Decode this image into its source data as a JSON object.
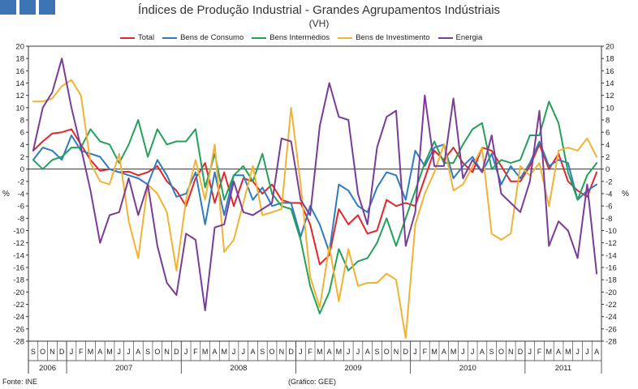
{
  "header": {
    "logo_blocks": [
      "logo-block-1",
      "logo-block-2",
      "logo-block-3"
    ],
    "logo_color": "#3c74b4"
  },
  "footer": {
    "source": "Fonte: INE",
    "credit": "(Gráfico: GEE)"
  },
  "chart_data": {
    "type": "line",
    "title": "Índices de Produção Industrial - Grandes Agrupamentos Indústriais",
    "subtitle": "(VH)",
    "ylabel_left": "%",
    "ylabel_right": "%",
    "ylim": [
      -28,
      20
    ],
    "yticks": [
      20,
      18,
      16,
      14,
      12,
      10,
      8,
      6,
      4,
      2,
      0,
      -2,
      -4,
      -6,
      -8,
      -10,
      -12,
      -14,
      -16,
      -18,
      -20,
      -22,
      -24,
      -26,
      -28
    ],
    "grid": false,
    "legend_position": "top",
    "month_labels": [
      "S",
      "O",
      "N",
      "D",
      "J",
      "F",
      "M",
      "A",
      "M",
      "J",
      "J",
      "A",
      "S",
      "O",
      "N",
      "D",
      "J",
      "F",
      "M",
      "A",
      "M",
      "J",
      "J",
      "A",
      "S",
      "O",
      "N",
      "D",
      "J",
      "F",
      "M",
      "A",
      "M",
      "J",
      "J",
      "A",
      "S",
      "O",
      "N",
      "D",
      "J",
      "F",
      "M",
      "A",
      "M",
      "J",
      "J",
      "A",
      "S",
      "O",
      "N",
      "D",
      "J",
      "F",
      "M",
      "A",
      "M",
      "J",
      "J",
      "A"
    ],
    "years": [
      {
        "label": "2006",
        "start": 0,
        "count": 4
      },
      {
        "label": "2007",
        "start": 4,
        "count": 12
      },
      {
        "label": "2008",
        "start": 16,
        "count": 12
      },
      {
        "label": "2009",
        "start": 28,
        "count": 12
      },
      {
        "label": "2010",
        "start": 40,
        "count": 12
      },
      {
        "label": "2011",
        "start": 52,
        "count": 8
      }
    ],
    "series": [
      {
        "name": "Total",
        "color": "#e3262b",
        "values": [
          3.0,
          4.5,
          5.8,
          6.0,
          6.5,
          4.0,
          1.5,
          -0.3,
          0.0,
          -0.5,
          -0.4,
          -1.0,
          -0.5,
          0.5,
          -2.0,
          -3.5,
          -6.0,
          -1.5,
          1.0,
          -5.5,
          -0.5,
          -6.0,
          -1.5,
          -2.0,
          -4.0,
          -2.5,
          -5.0,
          -5.5,
          -5.5,
          -9.0,
          -15.5,
          -14.0,
          -6.5,
          -9.0,
          -7.5,
          -10.5,
          -10.0,
          -5.0,
          -6.0,
          -5.5,
          -6.0,
          -1.5,
          3.0,
          1.5,
          3.5,
          1.0,
          -0.5,
          3.5,
          3.0,
          0.5,
          -2.0,
          -2.0,
          0.5,
          4.0,
          0.0,
          2.5,
          -2.0,
          -3.5,
          -4.5,
          -0.5
        ]
      },
      {
        "name": "Bens de Consumo",
        "color": "#2f7bc0",
        "values": [
          1.5,
          3.5,
          3.0,
          1.5,
          5.5,
          3.0,
          2.5,
          2.0,
          0.0,
          -0.5,
          -1.0,
          -1.5,
          -2.5,
          1.5,
          -1.0,
          -4.5,
          -4.0,
          -0.5,
          -9.0,
          -0.5,
          -7.5,
          -1.0,
          -1.0,
          -5.0,
          -3.0,
          -6.0,
          -5.5,
          -5.5,
          -11.0,
          -6.0,
          -9.0,
          -13.5,
          -2.5,
          -3.5,
          -6.0,
          -7.0,
          -3.0,
          -0.5,
          -1.0,
          -5.0,
          3.0,
          0.5,
          3.5,
          4.0,
          -1.5,
          0.5,
          2.0,
          -0.5,
          2.5,
          -2.5,
          0.5,
          -1.5,
          1.0,
          4.5,
          0.5,
          1.5,
          1.0,
          -5.0,
          -3.5,
          -2.5
        ]
      },
      {
        "name": "Bens Intermédios",
        "color": "#23a05a",
        "values": [
          1.5,
          0.0,
          1.5,
          2.0,
          3.5,
          3.5,
          6.5,
          4.5,
          4.0,
          1.0,
          4.0,
          8.0,
          2.0,
          6.5,
          4.0,
          4.5,
          4.5,
          6.5,
          -3.0,
          2.5,
          -5.0,
          -1.0,
          0.5,
          -2.0,
          2.5,
          -4.0,
          -6.0,
          -6.5,
          -11.5,
          -19.0,
          -23.5,
          -20.0,
          -13.0,
          -16.5,
          -15.0,
          -14.5,
          -12.0,
          -8.0,
          -12.5,
          -8.0,
          -3.5,
          1.0,
          4.5,
          1.0,
          1.0,
          4.0,
          6.5,
          7.5,
          0.0,
          1.5,
          1.0,
          1.5,
          5.5,
          5.5,
          11.0,
          7.5,
          -0.5,
          -5.0,
          -1.0,
          1.0
        ]
      },
      {
        "name": "Bens de Investimento",
        "color": "#f2b233",
        "values": [
          11.0,
          11.0,
          11.5,
          13.5,
          14.5,
          12.0,
          1.0,
          -2.0,
          -2.5,
          2.5,
          -8.5,
          -14.5,
          -2.5,
          -4.0,
          -7.0,
          -16.5,
          -5.0,
          1.5,
          -5.0,
          4.0,
          -13.5,
          -11.5,
          -5.5,
          0.5,
          -7.5,
          -7.0,
          -6.5,
          10.0,
          -2.5,
          -17.5,
          -22.5,
          -12.5,
          -21.5,
          -13.0,
          -19.0,
          -18.5,
          -18.5,
          -17.0,
          -18.0,
          -27.5,
          -9.0,
          -4.0,
          -0.5,
          4.0,
          -3.5,
          -2.5,
          0.5,
          3.5,
          -10.5,
          -11.5,
          -10.5,
          0.5,
          -1.0,
          1.0,
          -6.0,
          3.0,
          3.5,
          3.0,
          5.0,
          2.0
        ]
      },
      {
        "name": "Energia",
        "color": "#7a3c98",
        "values": [
          3.0,
          10.0,
          12.5,
          18.0,
          10.0,
          3.5,
          -3.5,
          -12.0,
          -7.5,
          -7.0,
          -1.5,
          -7.5,
          -2.5,
          -12.5,
          -18.5,
          -20.5,
          -10.5,
          -11.5,
          -23.0,
          -9.5,
          -9.0,
          -2.0,
          -7.0,
          -7.5,
          -6.5,
          -5.5,
          5.0,
          4.5,
          -5.0,
          -7.5,
          7.0,
          14.0,
          8.5,
          8.0,
          -4.0,
          -9.0,
          3.5,
          8.5,
          9.5,
          -12.5,
          -7.0,
          12.0,
          0.5,
          0.5,
          11.5,
          -1.5,
          1.5,
          -0.5,
          5.5,
          -4.0,
          -5.5,
          -7.0,
          -2.0,
          9.5,
          -12.5,
          -8.5,
          -10.0,
          -14.5,
          -2.5,
          -17.0
        ]
      }
    ]
  }
}
